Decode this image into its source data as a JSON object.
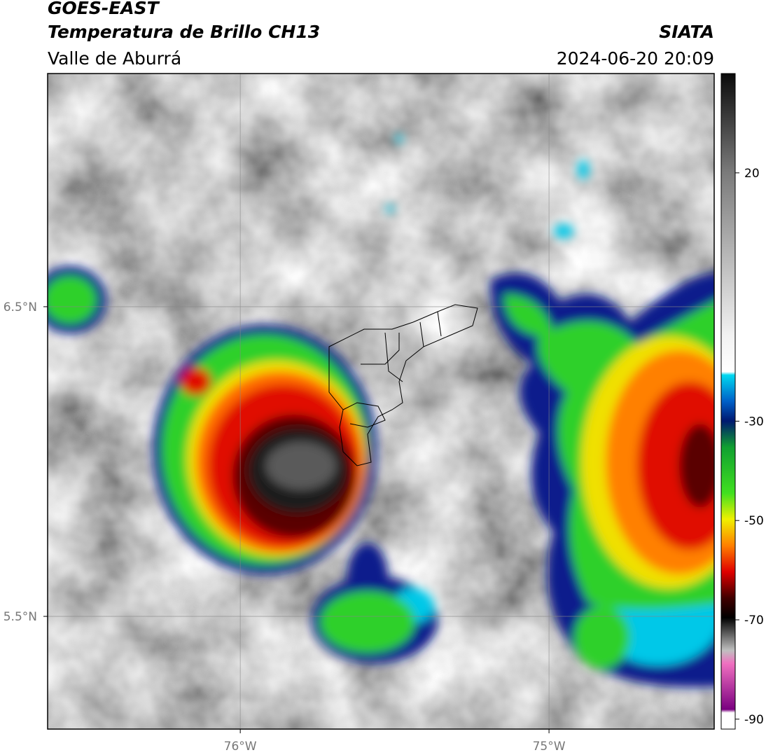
{
  "header": {
    "satellite": "GOES-EAST",
    "product": "Temperatura de Brillo CH13",
    "region": "Valle de Aburrá",
    "agency": "SIATA",
    "timestamp": "2024-06-20 20:09"
  },
  "map": {
    "xlim": [
      -76.624,
      -74.465
    ],
    "ylim": [
      5.136,
      7.253
    ],
    "xticks": [
      {
        "value": -76,
        "label": "76°W"
      },
      {
        "value": -75,
        "label": "75°W"
      }
    ],
    "yticks": [
      {
        "value": 5.5,
        "label": "5.5°N"
      },
      {
        "value": 6.5,
        "label": "6.5°N"
      }
    ],
    "grid": true
  },
  "colorbar": {
    "lim": [
      -92,
      40
    ],
    "ticks": [
      20,
      -30,
      -50,
      -70,
      -90
    ]
  }
}
